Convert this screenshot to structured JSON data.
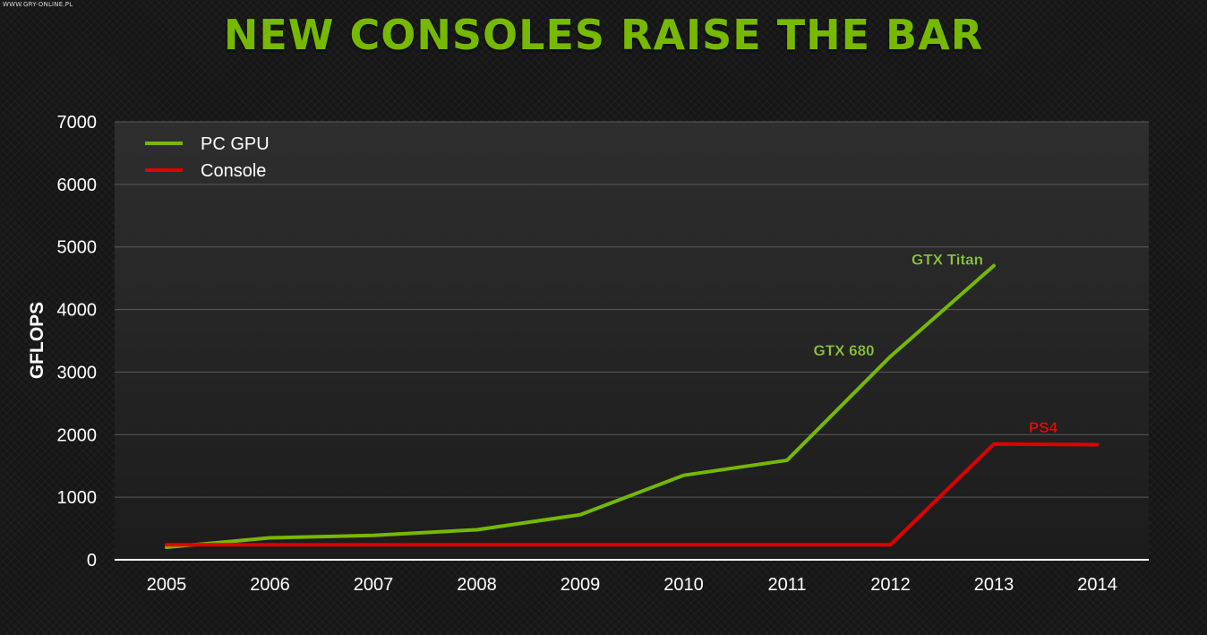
{
  "page": {
    "watermark": "WWW.GRY-ONLINE.PL",
    "title": "NEW CONSOLES RAISE THE BAR"
  },
  "colors": {
    "title": "#76b900",
    "pc_gpu": "#76b900",
    "console": "#e00000",
    "annotation_pc": "#8cc63f",
    "annotation_console": "#e01010"
  },
  "chart_data": {
    "type": "line",
    "title": "NEW CONSOLES RAISE THE BAR",
    "xlabel": "",
    "ylabel": "GFLOPS",
    "categories": [
      "2005",
      "2006",
      "2007",
      "2008",
      "2009",
      "2010",
      "2011",
      "2012",
      "2013",
      "2014"
    ],
    "x": [
      2005,
      2006,
      2007,
      2008,
      2009,
      2010,
      2011,
      2012,
      2013,
      2014
    ],
    "ylim": [
      0,
      7000
    ],
    "yticks": [
      0,
      1000,
      2000,
      3000,
      4000,
      5000,
      6000,
      7000
    ],
    "grid": true,
    "legend": "top-left",
    "series": [
      {
        "name": "PC GPU",
        "color": "#76b900",
        "points": [
          [
            2005,
            200
          ],
          [
            2006,
            350
          ],
          [
            2007,
            390
          ],
          [
            2008,
            480
          ],
          [
            2009,
            720
          ],
          [
            2010,
            1350
          ],
          [
            2011,
            1590
          ],
          [
            2012,
            3250
          ],
          [
            2013,
            4700
          ]
        ]
      },
      {
        "name": "Console",
        "color": "#e00000",
        "points": [
          [
            2005,
            240
          ],
          [
            2006,
            240
          ],
          [
            2007,
            240
          ],
          [
            2008,
            240
          ],
          [
            2009,
            240
          ],
          [
            2010,
            240
          ],
          [
            2011,
            240
          ],
          [
            2012,
            240
          ],
          [
            2013,
            1850
          ],
          [
            2014,
            1840
          ]
        ]
      }
    ],
    "annotations": [
      {
        "text": "GTX Titan",
        "x": 2013,
        "y": 4700,
        "series": "PC GPU"
      },
      {
        "text": "GTX 680",
        "x": 2012,
        "y": 3250,
        "series": "PC GPU"
      },
      {
        "text": "PS4",
        "x": 2013,
        "y": 1850,
        "series": "Console"
      }
    ]
  }
}
